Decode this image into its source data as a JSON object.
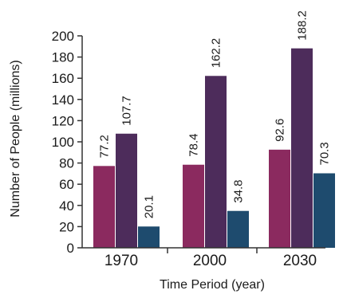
{
  "chart_data": {
    "type": "bar",
    "categories": [
      "1970",
      "2000",
      "2030"
    ],
    "series": [
      {
        "values": [
          77.2,
          78.4,
          92.6
        ],
        "labels": [
          "77.2",
          "78.4",
          "92.6"
        ],
        "color": "#8b2a5f"
      },
      {
        "values": [
          107.7,
          162.2,
          188.2
        ],
        "labels": [
          "107.7",
          "162.2",
          "188.2"
        ],
        "color": "#4d2c5b"
      },
      {
        "values": [
          20.1,
          34.8,
          70.3
        ],
        "labels": [
          "20.1",
          "34.8",
          "70.3"
        ],
        "color": "#1e4b6e"
      }
    ],
    "xlabel": "Time Period (year)",
    "ylabel": "Number of People (millions)",
    "ylim": [
      0,
      200
    ],
    "yticks": [
      0,
      20,
      40,
      60,
      80,
      100,
      120,
      140,
      160,
      180,
      200
    ],
    "grid": false,
    "axis_color": "#333333"
  }
}
